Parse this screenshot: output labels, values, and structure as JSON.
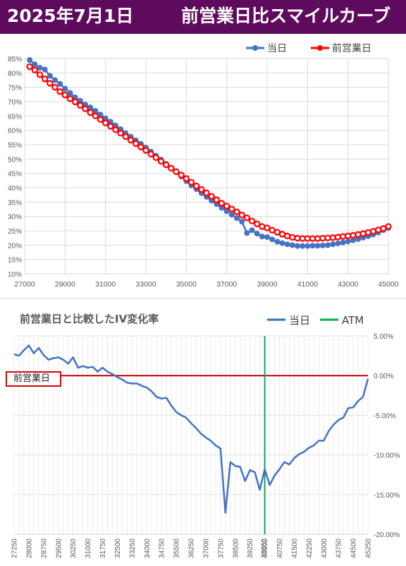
{
  "header": {
    "date": "2025年7月1日",
    "title": "前営業日比スマイルカーブ"
  },
  "colors": {
    "header_bg": "#5e0b5e",
    "today": "#4472c4",
    "prev": "#ff0000",
    "atm": "#00b050",
    "zero_line": "#c00000",
    "change": "#4472c4"
  },
  "chart_data": [
    {
      "type": "line",
      "title": "",
      "xlabel": "",
      "ylabel": "",
      "xlim": [
        27000,
        45000
      ],
      "ylim": [
        10,
        85
      ],
      "x_ticks": [
        "27000",
        "29000",
        "31000",
        "33000",
        "35000",
        "37000",
        "39000",
        "41000",
        "43000",
        "45000"
      ],
      "y_ticks": [
        "10%",
        "15%",
        "20%",
        "25%",
        "30%",
        "35%",
        "40%",
        "45%",
        "50%",
        "55%",
        "60%",
        "65%",
        "70%",
        "75%",
        "80%",
        "85%"
      ],
      "legend": "top-right",
      "series": [
        {
          "name": "当日",
          "marker": "circle",
          "x": [
            27250,
            27500,
            27750,
            28000,
            28250,
            28500,
            28750,
            29000,
            29250,
            29500,
            29750,
            30000,
            30250,
            30500,
            30750,
            31000,
            31250,
            31500,
            31750,
            32000,
            32250,
            32500,
            32750,
            33000,
            33250,
            33500,
            33750,
            34000,
            34250,
            34500,
            34750,
            35000,
            35250,
            35500,
            35750,
            36000,
            36250,
            36500,
            36750,
            37000,
            37250,
            37500,
            37750,
            38000,
            38250,
            38500,
            38750,
            39000,
            39250,
            39500,
            39750,
            40000,
            40250,
            40500,
            40750,
            41000,
            41250,
            41500,
            41750,
            42000,
            42250,
            42500,
            42750,
            43000,
            43250,
            43500,
            43750,
            44000,
            44250,
            44500,
            44750,
            45000
          ],
          "values": [
            84.5,
            83.0,
            81.8,
            81.2,
            79.0,
            77.5,
            76.2,
            74.5,
            73.0,
            71.5,
            70.3,
            69.0,
            68.0,
            66.8,
            65.5,
            64.2,
            63.0,
            61.7,
            60.4,
            59.0,
            57.8,
            56.5,
            55.3,
            54.0,
            52.6,
            51.2,
            49.8,
            48.3,
            46.8,
            45.4,
            43.9,
            42.3,
            40.8,
            39.5,
            38.1,
            36.8,
            35.5,
            34.3,
            33.0,
            31.8,
            30.6,
            29.4,
            28.2,
            24.2,
            25.2,
            24.0,
            23.0,
            22.8,
            22.0,
            21.2,
            20.7,
            20.3,
            20.0,
            19.7,
            19.7,
            19.7,
            19.8,
            19.8,
            19.9,
            20.0,
            20.3,
            20.6,
            20.9,
            21.3,
            21.7,
            22.1,
            22.6,
            23.1,
            23.7,
            24.4,
            25.2,
            26.0
          ]
        },
        {
          "name": "前営業日",
          "marker": "circle",
          "x": [
            27250,
            27500,
            27750,
            28000,
            28250,
            28500,
            28750,
            29000,
            29250,
            29500,
            29750,
            30000,
            30250,
            30500,
            30750,
            31000,
            31250,
            31500,
            31750,
            32000,
            32250,
            32500,
            32750,
            33000,
            33250,
            33500,
            33750,
            34000,
            34250,
            34500,
            34750,
            35000,
            35250,
            35500,
            35750,
            36000,
            36250,
            36500,
            36750,
            37000,
            37250,
            37500,
            37750,
            38000,
            38250,
            38500,
            38750,
            39000,
            39250,
            39500,
            39750,
            40000,
            40250,
            40500,
            40750,
            41000,
            41250,
            41500,
            41750,
            42000,
            42250,
            42500,
            42750,
            43000,
            43250,
            43500,
            43750,
            44000,
            44250,
            44500,
            44750,
            45000
          ],
          "values": [
            82.2,
            81.0,
            79.4,
            77.9,
            76.4,
            75.0,
            73.5,
            72.3,
            71.0,
            69.9,
            68.7,
            67.5,
            66.2,
            65.0,
            63.8,
            62.6,
            61.4,
            60.2,
            59.0,
            57.8,
            56.6,
            55.4,
            54.2,
            53.0,
            51.7,
            50.5,
            49.2,
            48.0,
            46.8,
            45.6,
            44.4,
            43.2,
            41.9,
            40.6,
            39.4,
            38.2,
            37.0,
            35.8,
            34.6,
            33.6,
            32.6,
            31.6,
            30.5,
            29.5,
            28.4,
            27.4,
            26.5,
            26.0,
            25.2,
            24.5,
            23.8,
            23.2,
            22.7,
            22.4,
            22.3,
            22.3,
            22.3,
            22.3,
            22.4,
            22.5,
            22.6,
            22.8,
            23.0,
            23.2,
            23.4,
            23.7,
            24.0,
            24.4,
            24.8,
            25.3,
            25.8,
            26.5
          ]
        }
      ]
    },
    {
      "type": "line",
      "title": "前営業日と比較したIV変化率",
      "xlabel": "",
      "ylabel": "",
      "xlim": [
        27250,
        45250
      ],
      "ylim": [
        -20,
        5
      ],
      "x_ticks": [
        "27250",
        "28000",
        "28750",
        "29500",
        "30250",
        "31000",
        "31750",
        "32500",
        "33250",
        "34000",
        "34750",
        "35500",
        "36250",
        "37000",
        "37750",
        "38500",
        "39250",
        "39950",
        "40000",
        "40750",
        "41500",
        "42250",
        "43000",
        "43750",
        "44500",
        "45250"
      ],
      "y_ticks": [
        "5.00%",
        "0.00%",
        "-5.00%",
        "-10.00%",
        "-15.00%",
        "-20.00%"
      ],
      "legend": "top-right",
      "reference_label": "前営業日",
      "atm_x": 40000,
      "series": [
        {
          "name": "当日",
          "x": [
            27250,
            27500,
            27750,
            28000,
            28250,
            28500,
            28750,
            29000,
            29250,
            29500,
            29750,
            30000,
            30250,
            30500,
            30750,
            31000,
            31250,
            31500,
            31750,
            32000,
            32250,
            32500,
            32750,
            33000,
            33250,
            33500,
            33750,
            34000,
            34250,
            34500,
            34750,
            35000,
            35250,
            35500,
            35750,
            36000,
            36250,
            36500,
            36750,
            37000,
            37250,
            37500,
            37750,
            38000,
            38250,
            38500,
            38750,
            39000,
            39250,
            39500,
            39750,
            40000,
            40250,
            40500,
            40750,
            41000,
            41250,
            41500,
            41750,
            42000,
            42250,
            42500,
            42750,
            43000,
            43250,
            43500,
            43750,
            44000,
            44250,
            44500,
            44750,
            45000,
            45250
          ],
          "values": [
            2.7,
            2.5,
            3.2,
            3.8,
            2.8,
            3.5,
            2.6,
            2.0,
            2.2,
            2.3,
            2.0,
            1.5,
            2.3,
            1.0,
            1.2,
            1.0,
            1.1,
            0.5,
            1.0,
            0.5,
            0.2,
            -0.2,
            -0.5,
            -0.9,
            -1.0,
            -1.0,
            -1.3,
            -1.5,
            -2.0,
            -2.7,
            -2.9,
            -2.8,
            -3.8,
            -4.6,
            -5.0,
            -5.3,
            -6.0,
            -6.6,
            -7.3,
            -7.8,
            -8.2,
            -8.8,
            -9.2,
            -17.3,
            -10.9,
            -11.4,
            -11.5,
            -13.3,
            -11.9,
            -12.2,
            -14.4,
            -11.8,
            -13.8,
            -12.6,
            -11.8,
            -10.9,
            -11.2,
            -10.4,
            -9.9,
            -9.6,
            -9.1,
            -8.8,
            -8.2,
            -8.2,
            -7.0,
            -6.2,
            -5.6,
            -5.3,
            -4.1,
            -4.0,
            -3.2,
            -2.7,
            -0.4
          ]
        }
      ],
      "atm_label": "ATM"
    }
  ]
}
